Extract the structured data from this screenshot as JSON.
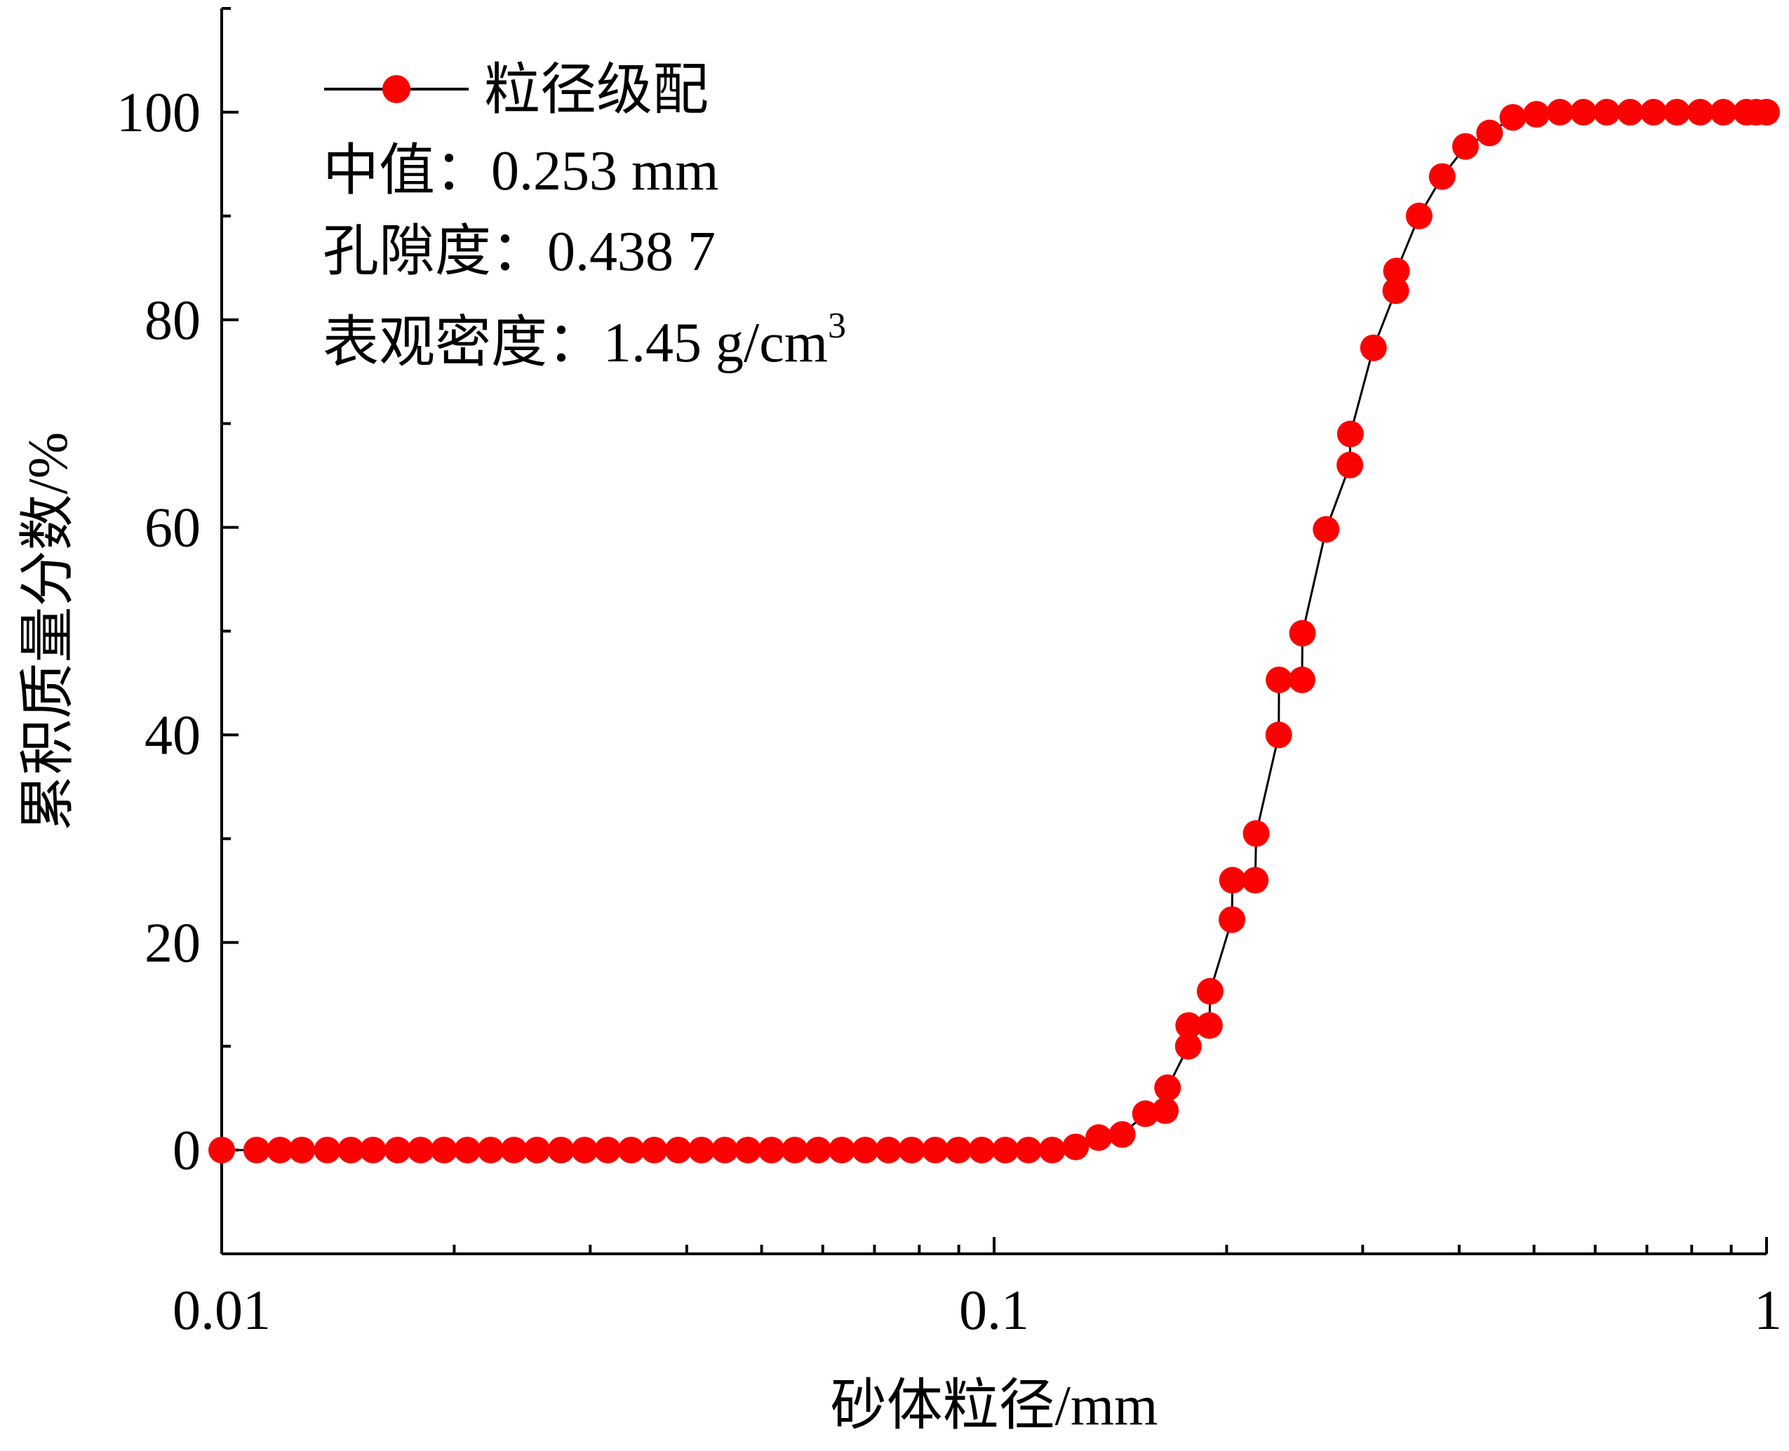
{
  "chart_data": {
    "type": "line",
    "xlabel": "砂体粒径/mm",
    "ylabel": "累积质量分数/%",
    "x_scale": "log",
    "xlim": [
      0.01,
      1
    ],
    "ylim": [
      -10,
      110
    ],
    "x_ticks": [
      {
        "value": 0.01,
        "label": "0.01"
      },
      {
        "value": 0.1,
        "label": "0.1"
      },
      {
        "value": 1,
        "label": "1"
      }
    ],
    "y_ticks": [
      {
        "value": 0,
        "label": "0"
      },
      {
        "value": 20,
        "label": "20"
      },
      {
        "value": 40,
        "label": "40"
      },
      {
        "value": 60,
        "label": "60"
      },
      {
        "value": 80,
        "label": "80"
      },
      {
        "value": 100,
        "label": "100"
      }
    ],
    "grid": false,
    "legend_position": "top-left",
    "series": [
      {
        "name": "粒径级配",
        "color": "#ff0000",
        "marker": "circle",
        "points": [
          [
            0.01,
            0
          ],
          [
            0.0111,
            0
          ],
          [
            0.0119,
            0
          ],
          [
            0.0127,
            0
          ],
          [
            0.0137,
            0
          ],
          [
            0.0147,
            0
          ],
          [
            0.0157,
            0
          ],
          [
            0.0169,
            0
          ],
          [
            0.0181,
            0
          ],
          [
            0.0194,
            0
          ],
          [
            0.0208,
            0
          ],
          [
            0.0223,
            0
          ],
          [
            0.0239,
            0
          ],
          [
            0.0256,
            0
          ],
          [
            0.0275,
            0
          ],
          [
            0.0295,
            0
          ],
          [
            0.0316,
            0
          ],
          [
            0.0339,
            0
          ],
          [
            0.0363,
            0
          ],
          [
            0.039,
            0
          ],
          [
            0.0418,
            0
          ],
          [
            0.0448,
            0
          ],
          [
            0.048,
            0
          ],
          [
            0.0515,
            0
          ],
          [
            0.0552,
            0
          ],
          [
            0.0592,
            0
          ],
          [
            0.0635,
            0
          ],
          [
            0.0681,
            0
          ],
          [
            0.073,
            0
          ],
          [
            0.0782,
            0
          ],
          [
            0.0839,
            0
          ],
          [
            0.0899,
            0
          ],
          [
            0.0964,
            0
          ],
          [
            0.1034,
            0
          ],
          [
            0.1108,
            0
          ],
          [
            0.1189,
            0
          ],
          [
            0.1275,
            0.3
          ],
          [
            0.1366,
            1.2
          ],
          [
            0.1465,
            1.5
          ],
          [
            0.157,
            3.5
          ],
          [
            0.1666,
            3.8
          ],
          [
            0.1677,
            6
          ],
          [
            0.1784,
            10
          ],
          [
            0.1786,
            12
          ],
          [
            0.19,
            12
          ],
          [
            0.1904,
            15.3
          ],
          [
            0.2032,
            22.2
          ],
          [
            0.2035,
            26
          ],
          [
            0.2178,
            26
          ],
          [
            0.2184,
            30.5
          ],
          [
            0.2336,
            40
          ],
          [
            0.2338,
            45.3
          ],
          [
            0.2504,
            45.3
          ],
          [
            0.2507,
            49.8
          ],
          [
            0.269,
            59.8
          ],
          [
            0.2888,
            66
          ],
          [
            0.2892,
            69
          ],
          [
            0.3098,
            77.3
          ],
          [
            0.3311,
            82.8
          ],
          [
            0.3318,
            84.7
          ],
          [
            0.355,
            90
          ],
          [
            0.3803,
            93.8
          ],
          [
            0.4076,
            96.7
          ],
          [
            0.4379,
            98
          ],
          [
            0.4694,
            99.5
          ],
          [
            0.5036,
            99.8
          ],
          [
            0.5401,
            100
          ],
          [
            0.5794,
            100
          ],
          [
            0.6211,
            100
          ],
          [
            0.6659,
            100
          ],
          [
            0.714,
            100
          ],
          [
            0.7656,
            100
          ],
          [
            0.8206,
            100
          ],
          [
            0.8793,
            100
          ],
          [
            0.9422,
            100
          ],
          [
            0.97,
            100
          ],
          [
            1.0,
            100
          ]
        ]
      }
    ],
    "annotations": [
      {
        "prefix": "中值：",
        "value": "0.253 mm"
      },
      {
        "prefix": "孔隙度：",
        "value": "0.438 7"
      },
      {
        "prefix": "表观密度：",
        "value": "1.45 g/cm",
        "superscript": "3"
      }
    ]
  }
}
